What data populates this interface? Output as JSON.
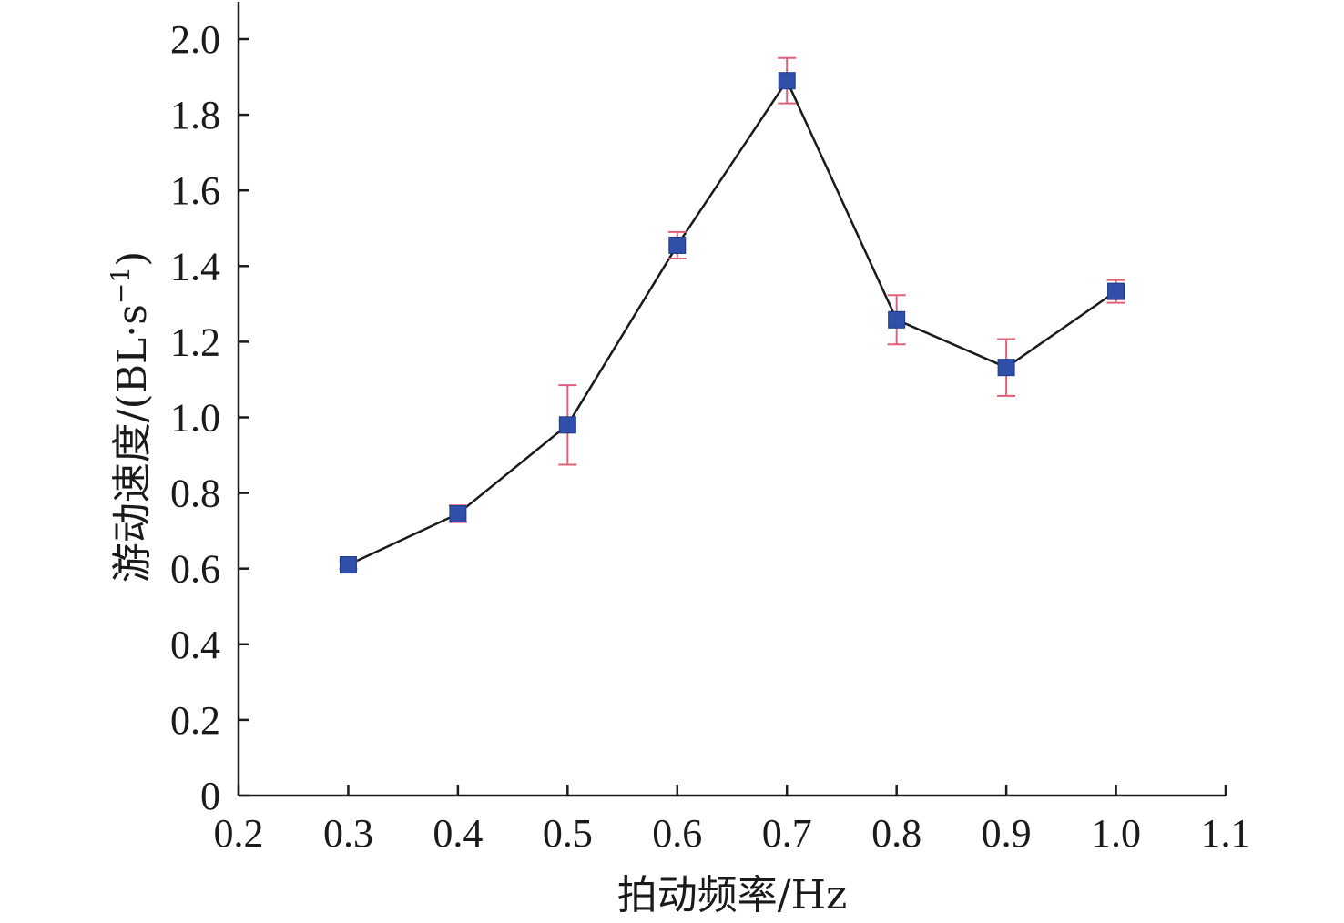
{
  "chart_data": {
    "type": "line",
    "xlabel": "拍动频率/Hz",
    "ylabel": "游动速度/(BL·s",
    "ylabel_unit_exponent": "−1",
    "ylabel_close": ")",
    "xlim": [
      0.2,
      1.1
    ],
    "ylim": [
      0,
      2.0
    ],
    "x_ticks": [
      "0.2",
      "0.3",
      "0.4",
      "0.5",
      "0.6",
      "0.7",
      "0.8",
      "0.9",
      "1.0",
      "1.1"
    ],
    "y_ticks": [
      "0",
      "0.2",
      "0.4",
      "0.6",
      "0.8",
      "1.0",
      "1.2",
      "1.4",
      "1.6",
      "1.8",
      "2.0"
    ],
    "grid": false,
    "series": [
      {
        "x": [
          0.3,
          0.4,
          0.5,
          0.6,
          0.7,
          0.8,
          0.9,
          1.0
        ],
        "values": [
          0.61,
          0.745,
          0.98,
          1.455,
          1.89,
          1.258,
          1.132,
          1.333
        ],
        "error": [
          0.01,
          0.022,
          0.105,
          0.035,
          0.06,
          0.065,
          0.075,
          0.03
        ],
        "color": "#2f4fa8",
        "error_color": "#e0607a",
        "marker": "square"
      }
    ]
  }
}
